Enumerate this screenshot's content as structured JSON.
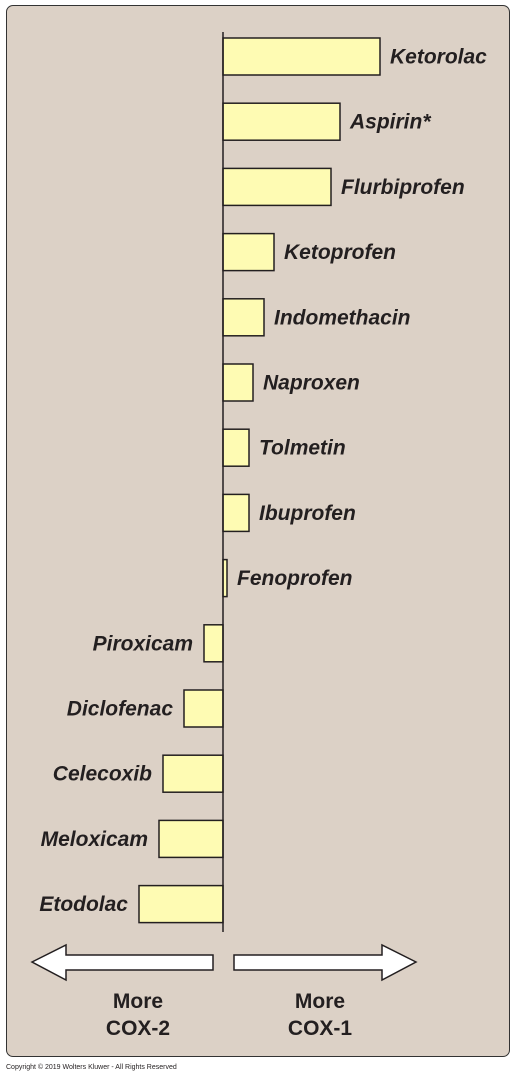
{
  "chart_data": {
    "type": "bar",
    "orientation": "horizontal",
    "categories": [
      "Ketorolac",
      "Aspirin*",
      "Flurbiprofen",
      "Ketoprofen",
      "Indomethacin",
      "Naproxen",
      "Tolmetin",
      "Ibuprofen",
      "Fenoprofen",
      "Piroxicam",
      "Diclofenac",
      "Celecoxib",
      "Meloxicam",
      "Etodolac"
    ],
    "values": [
      157,
      117,
      108,
      51,
      41,
      30,
      26,
      26,
      4,
      -19,
      -39,
      -60,
      -64,
      -84
    ],
    "colors": {
      "bar": "#fefbb3",
      "bar_stroke": "#231f20",
      "text": "#231f20",
      "background": "#dcd1c6"
    },
    "grid": false,
    "legend": "none"
  },
  "axis": {
    "left_label": [
      "More",
      "COX-2"
    ],
    "right_label": [
      "More",
      "COX-1"
    ],
    "left_arrow_icon": "left-arrow-icon",
    "right_arrow_icon": "right-arrow-icon"
  },
  "footer": {
    "copyright": "Copyright © 2019 Wolters Kluwer - All Rights Reserved"
  }
}
